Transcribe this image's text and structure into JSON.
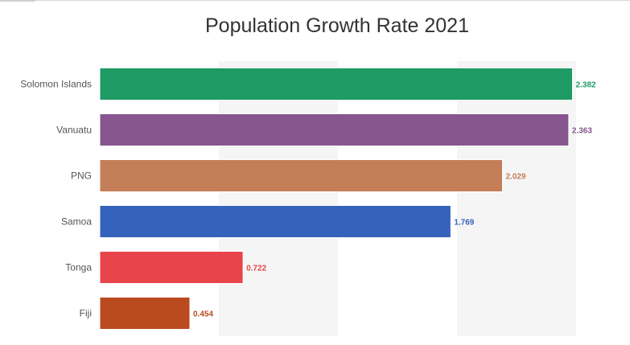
{
  "chart_data": {
    "type": "bar",
    "orientation": "horizontal",
    "title": "Population Growth Rate 2021",
    "categories": [
      "Solomon Islands",
      "Vanuatu",
      "PNG",
      "Samoa",
      "Tonga",
      "Fiji"
    ],
    "values": [
      2.382,
      2.363,
      2.029,
      1.769,
      0.722,
      0.454
    ],
    "value_labels": [
      "2.382",
      "2.363",
      "2.029",
      "1.769",
      "0.722",
      "0.454"
    ],
    "colors": [
      "#1e9a63",
      "#87568f",
      "#c47e58",
      "#3562bb",
      "#e8454a",
      "#ba4a20"
    ],
    "xlim": [
      0,
      2.4
    ],
    "xlabel": "",
    "ylabel": "",
    "grid": "alternating vertical bands",
    "legend": "none"
  }
}
